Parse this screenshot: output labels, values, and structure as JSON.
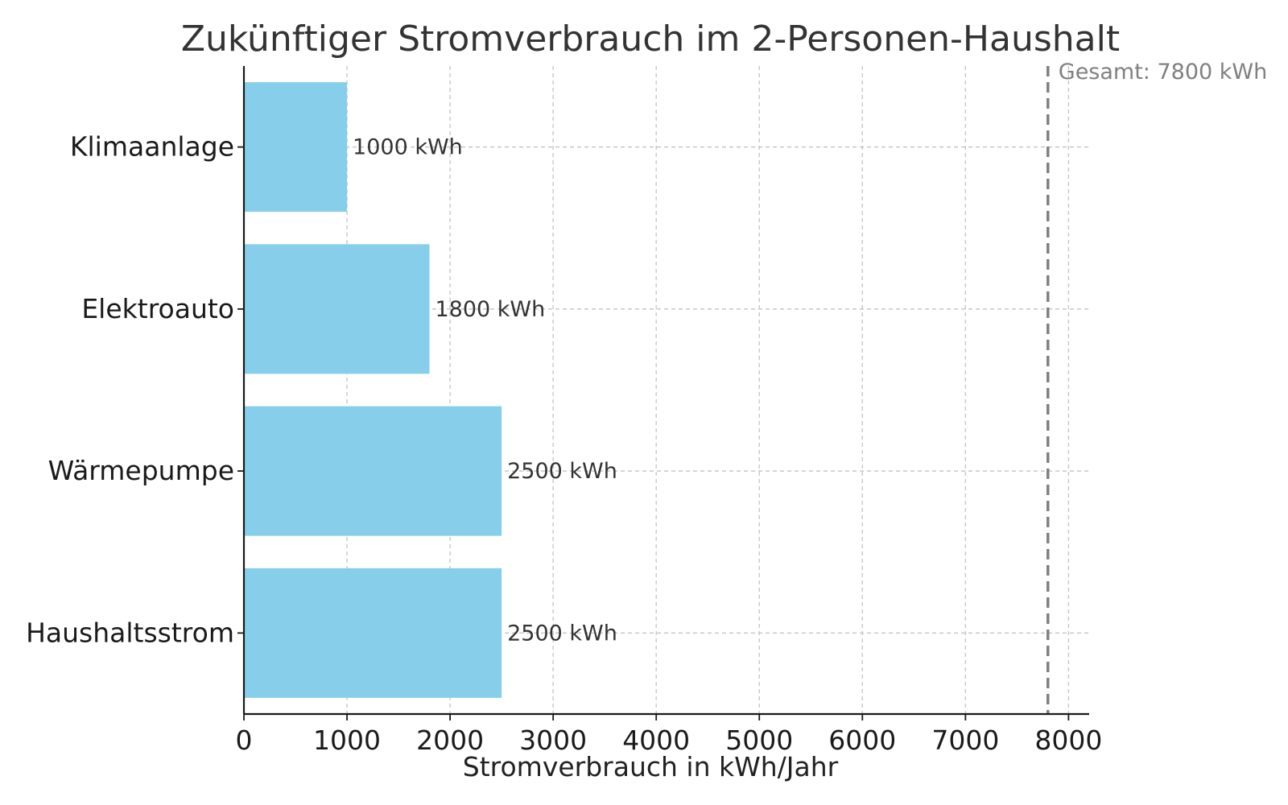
{
  "chart_data": {
    "type": "bar",
    "orientation": "horizontal",
    "title": "Zukünftiger Stromverbrauch im 2-Personen-Haushalt",
    "xlabel": "Stromverbrauch in kWh/Jahr",
    "ylabel": "",
    "categories": [
      "Haushaltsstrom",
      "Wärmepumpe",
      "Elektroauto",
      "Klimaanlage"
    ],
    "values": [
      2500,
      2500,
      1800,
      1000
    ],
    "value_labels": [
      "2500 kWh",
      "2500 kWh",
      "1800 kWh",
      "1000 kWh"
    ],
    "xlim": [
      0,
      8200
    ],
    "xticks": [
      0,
      1000,
      2000,
      3000,
      4000,
      5000,
      6000,
      7000,
      8000
    ],
    "xtick_labels": [
      "0",
      "1000",
      "2000",
      "3000",
      "4000",
      "5000",
      "6000",
      "7000",
      "8000"
    ],
    "grid": true,
    "grid_style": "dashed",
    "legend": "none",
    "reference_line": {
      "value": 7800,
      "label": "Gesamt: 7800 kWh",
      "style": "dashed",
      "color": "#808080"
    },
    "colors": {
      "bar": "#87CEEB",
      "title": "#333333",
      "grid": "#c8c8c8",
      "axis": "#1a1a1a",
      "value_label": "#333333",
      "reference": "#808080"
    }
  }
}
